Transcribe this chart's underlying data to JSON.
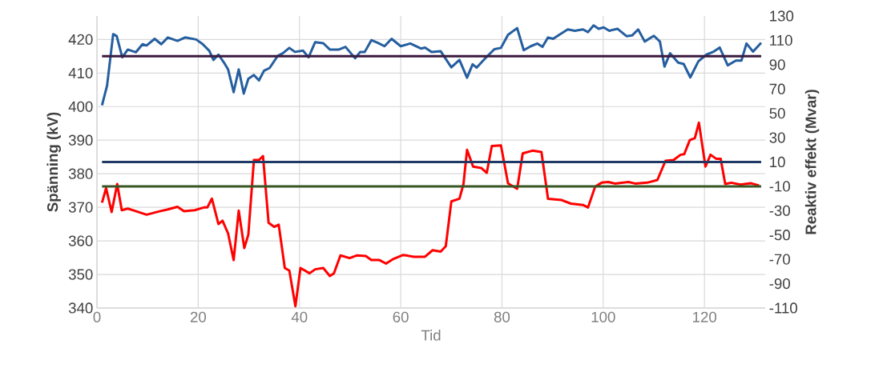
{
  "chart_data": {
    "type": "line",
    "xlabel": "Tid",
    "ylabel": "Spänning (kV)",
    "y2label": "Reaktiv effekt (Mvar)",
    "xlim": [
      0,
      132
    ],
    "xticks": [
      0,
      20,
      40,
      60,
      80,
      100,
      120
    ],
    "ylim": [
      340,
      427
    ],
    "yticks": [
      340,
      350,
      360,
      370,
      380,
      390,
      400,
      410,
      420
    ],
    "y2lim": [
      -110,
      130
    ],
    "y2ticks": [
      -110,
      -90,
      -70,
      -50,
      -30,
      -10,
      10,
      30,
      50,
      70,
      90,
      110,
      130
    ],
    "grid": true,
    "line_style": "solid",
    "ref_lines": [
      {
        "axis": "y",
        "value": 415,
        "color": "#3b1a3f"
      },
      {
        "axis": "y2",
        "value": 10,
        "color": "#1f3864"
      },
      {
        "axis": "y2",
        "value": -10,
        "color": "#375623"
      }
    ],
    "series": [
      {
        "color": "#255e9f",
        "axis": "y",
        "x": [
          1,
          2,
          3.2,
          3.9,
          5,
          6.1,
          7.7,
          9,
          9.8,
          11.4,
          12.7,
          14,
          15.9,
          17.4,
          19.6,
          20.9,
          22.2,
          23,
          24,
          25.1,
          25.9,
          27,
          28,
          29,
          29.9,
          31,
          32,
          33,
          34.1,
          35.7,
          36.7,
          38,
          39.1,
          40.7,
          41.8,
          43.1,
          44.7,
          46,
          47.8,
          49.1,
          51,
          52,
          52.9,
          54.2,
          55.5,
          56.8,
          58.2,
          60,
          61.9,
          64,
          64.8,
          66.1,
          67.9,
          70,
          71.6,
          73.1,
          74.2,
          75,
          76.9,
          78.5,
          79.8,
          81.2,
          83,
          84.3,
          85.7,
          87,
          88,
          89.1,
          90.1,
          91.5,
          93,
          94.4,
          96,
          97,
          98.1,
          99.1,
          100.1,
          101.2,
          102.8,
          104.6,
          105.7,
          106.9,
          108.2,
          110,
          111.2,
          112.1,
          113.2,
          114.8,
          115.9,
          117.2,
          118.8,
          120.4,
          121.7,
          123,
          124.6,
          126.2,
          127.3,
          128.3,
          129.6,
          131.2
        ],
        "values": [
          400.4,
          406.3,
          421.6,
          421,
          414.7,
          417,
          416.2,
          418.6,
          418.2,
          420.2,
          418.6,
          420.6,
          419.6,
          420.6,
          420,
          418.6,
          416.6,
          413.9,
          415.5,
          413.1,
          411.1,
          404.3,
          411.1,
          403.9,
          408.3,
          409.4,
          407.8,
          410.7,
          411.5,
          415.1,
          415.9,
          417.5,
          416.3,
          416.7,
          414.7,
          419.2,
          418.9,
          417,
          417,
          417.8,
          414.4,
          416.3,
          416.3,
          419.8,
          419,
          418,
          420.2,
          418,
          418.8,
          417.3,
          417.6,
          416.3,
          416.5,
          411.7,
          413.9,
          408.6,
          412.6,
          411.6,
          414.7,
          417.1,
          417.5,
          421.4,
          423.4,
          416.8,
          418,
          418.8,
          417.8,
          420.6,
          420.2,
          421.6,
          423,
          422.6,
          423,
          422.2,
          424.2,
          423.2,
          423.6,
          422.6,
          423.2,
          421,
          421.2,
          423,
          419.4,
          421.1,
          419.4,
          411.9,
          415.9,
          413.1,
          412.7,
          408.7,
          413.5,
          415.5,
          416.3,
          417.6,
          412.3,
          413.7,
          413.7,
          418.8,
          416.4,
          419
        ]
      },
      {
        "color": "#ff0000",
        "axis": "y2",
        "x": [
          1,
          1.8,
          2.9,
          4,
          4.9,
          6.1,
          7.4,
          9.8,
          12.2,
          14,
          15.9,
          17.2,
          19.3,
          21.1,
          21.8,
          22.7,
          24,
          24.8,
          25.9,
          27,
          28,
          29.1,
          29.9,
          31,
          32,
          32.8,
          33.9,
          35,
          35.9,
          37.1,
          38,
          39.2,
          40.2,
          42,
          43.1,
          44.7,
          46,
          46.8,
          48.1,
          49.9,
          51.3,
          53.1,
          54.2,
          55.8,
          57.1,
          58.4,
          60.5,
          62.6,
          64.8,
          66.3,
          67.9,
          68.9,
          70,
          71.6,
          72.4,
          73.1,
          74.3,
          75.9,
          77,
          78,
          79.8,
          81.2,
          83,
          84.1,
          86,
          87.8,
          89.1,
          91.8,
          93.6,
          96,
          97,
          98.4,
          99.7,
          101,
          102.3,
          105,
          106.3,
          108.7,
          110.7,
          112.3,
          113.9,
          115.3,
          116,
          117.1,
          118.1,
          118.9,
          120.2,
          121.2,
          122.3,
          123.2,
          124.1,
          125.3,
          127.1,
          129.2,
          130.8
        ],
        "values": [
          -23.4,
          -11.4,
          -31.1,
          -8.1,
          -29.6,
          -28.3,
          -30,
          -33.3,
          -30.7,
          -29,
          -26.8,
          -30.5,
          -29.6,
          -27.4,
          -27.4,
          -20.1,
          -41,
          -38.2,
          -48.7,
          -70.6,
          -30,
          -60.7,
          -49.8,
          11.6,
          11.6,
          14.9,
          -40,
          -43.3,
          -41.5,
          -77.1,
          -79.3,
          -108.5,
          -77.1,
          -81.5,
          -78.2,
          -77.1,
          -83.7,
          -81.5,
          -66.8,
          -69,
          -66.8,
          -67.3,
          -70.6,
          -70.6,
          -73.5,
          -70,
          -66.4,
          -67.9,
          -67.9,
          -62.5,
          -63.6,
          -59.2,
          -22.4,
          -20.2,
          -8.1,
          20,
          6.2,
          5.1,
          1.1,
          23.1,
          23.7,
          -7.6,
          -12,
          17.1,
          19.3,
          18.2,
          -20.2,
          -21.3,
          -24.2,
          -25.3,
          -27.4,
          -10.3,
          -7,
          -6.4,
          -7.7,
          -6.4,
          -7.7,
          -7,
          -4.8,
          11,
          11.6,
          16,
          16.4,
          28,
          29.6,
          42.3,
          6.2,
          16,
          12.7,
          12.7,
          -8.1,
          -7,
          -8.6,
          -7.5,
          -9.3
        ]
      }
    ]
  }
}
